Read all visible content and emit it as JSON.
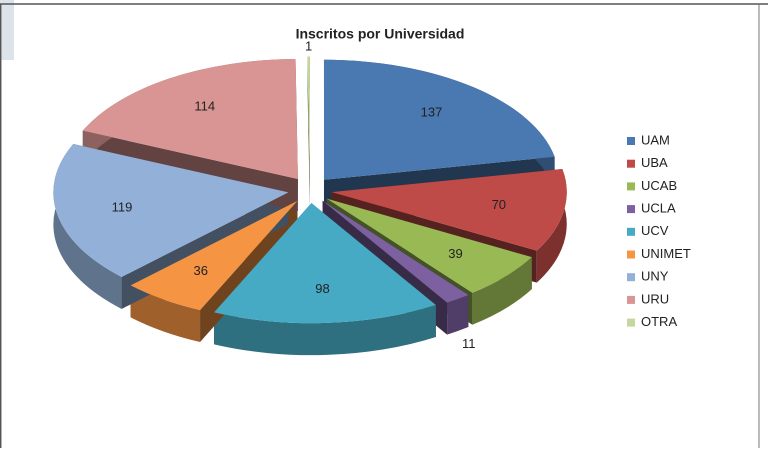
{
  "chart_data": {
    "type": "pie",
    "title": "Inscritos por Universidad",
    "categories": [
      "UAM",
      "UBA",
      "UCAB",
      "UCLA",
      "UCV",
      "UNIMET",
      "UNY",
      "URU",
      "OTRA"
    ],
    "values": [
      137,
      70,
      39,
      11,
      98,
      36,
      119,
      114,
      1
    ],
    "colors": [
      "#4a78b0",
      "#be4b48",
      "#98b954",
      "#7d60a0",
      "#46aac5",
      "#f59443",
      "#93b1d8",
      "#d99593",
      "#c4d79c"
    ],
    "legend": "right"
  }
}
